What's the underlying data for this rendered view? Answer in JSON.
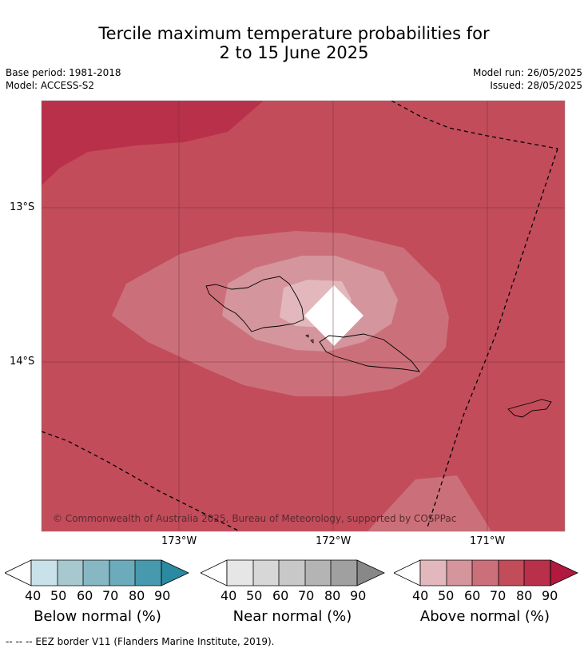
{
  "title_line1": "Tercile maximum temperature probabilities for",
  "title_line2": "2 to 15 June 2025",
  "meta": {
    "base_period": "Base period: 1981-2018",
    "model": "Model: ACCESS-S2",
    "model_run": "Model run: 26/05/2025",
    "issued": "Issued: 28/05/2025"
  },
  "map": {
    "copyright": "© Commonwealth of Australia 2025, Bureau of Meteorology, supported by COSPPac",
    "lat_labels": [
      "13°S",
      "14°S"
    ],
    "lon_labels": [
      "173°W",
      "172°W",
      "171°W"
    ]
  },
  "colorbars": [
    {
      "title": "Below normal (%)",
      "ticks": [
        "40",
        "50",
        "60",
        "70",
        "80",
        "90"
      ],
      "colors": [
        "#ffffff",
        "#c9e1e8",
        "#a7c8cf",
        "#88b7c4",
        "#6babbb",
        "#4799ad",
        "#2a8aa2"
      ]
    },
    {
      "title": "Near normal (%)",
      "ticks": [
        "40",
        "50",
        "60",
        "70",
        "80",
        "90"
      ],
      "colors": [
        "#ffffff",
        "#e6e6e6",
        "#d7d7d7",
        "#c8c8c8",
        "#b4b4b4",
        "#a0a0a0",
        "#888888"
      ]
    },
    {
      "title": "Above normal (%)",
      "ticks": [
        "40",
        "50",
        "60",
        "70",
        "80",
        "90"
      ],
      "colors": [
        "#ffffff",
        "#e2b8bd",
        "#d4959c",
        "#cb707a",
        "#c24c5a",
        "#b9304a",
        "#b2193f"
      ]
    }
  ],
  "footnote": "--  --  -- EEZ border V11 (Flanders Marine Institute, 2019)."
}
